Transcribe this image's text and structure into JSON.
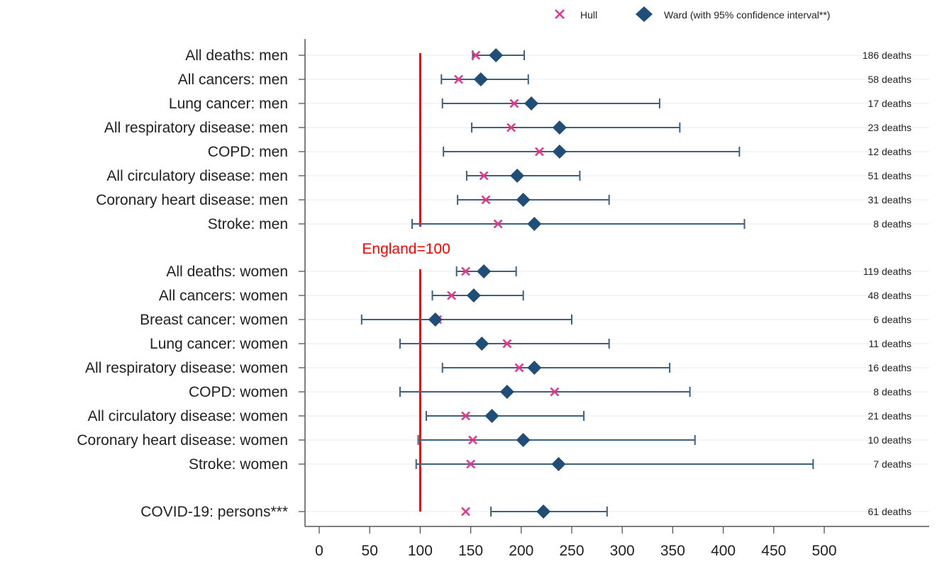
{
  "chart_data": {
    "type": "scatter",
    "orientation": "horizontal",
    "xlim": [
      0,
      500
    ],
    "xticks": [
      0,
      50,
      100,
      150,
      200,
      250,
      300,
      350,
      400,
      450,
      500
    ],
    "reference_line": {
      "value": 100,
      "label": "England=100",
      "color": "#ff0000"
    },
    "legend": {
      "position": "top-right",
      "hull_label": "Hull",
      "ward_label": "Ward (with 95% confidence interval**)"
    },
    "colors": {
      "hull": "#e8348f",
      "ward": "#1f4e79",
      "ci": "#3d5f80"
    },
    "rows": [
      {
        "label": "All deaths: men",
        "deaths": "186 deaths",
        "hull": 155,
        "ward": 175,
        "ci_low": 152,
        "ci_high": 203
      },
      {
        "label": "All cancers: men",
        "deaths": "58 deaths",
        "hull": 138,
        "ward": 160,
        "ci_low": 121,
        "ci_high": 207
      },
      {
        "label": "Lung cancer: men",
        "deaths": "17 deaths",
        "hull": 193,
        "ward": 210,
        "ci_low": 122,
        "ci_high": 337
      },
      {
        "label": "All respiratory disease: men",
        "deaths": "23 deaths",
        "hull": 190,
        "ward": 238,
        "ci_low": 151,
        "ci_high": 357
      },
      {
        "label": "COPD: men",
        "deaths": "12 deaths",
        "hull": 218,
        "ward": 238,
        "ci_low": 123,
        "ci_high": 416
      },
      {
        "label": "All circulatory disease: men",
        "deaths": "51 deaths",
        "hull": 163,
        "ward": 196,
        "ci_low": 146,
        "ci_high": 258
      },
      {
        "label": "Coronary heart disease: men",
        "deaths": "31 deaths",
        "hull": 165,
        "ward": 202,
        "ci_low": 137,
        "ci_high": 287
      },
      {
        "label": "Stroke: men",
        "deaths": "8 deaths",
        "hull": 177,
        "ward": 213,
        "ci_low": 92,
        "ci_high": 421
      },
      {
        "label": "All deaths: women",
        "deaths": "119 deaths",
        "hull": 145,
        "ward": 163,
        "ci_low": 136,
        "ci_high": 195
      },
      {
        "label": "All cancers: women",
        "deaths": "48 deaths",
        "hull": 131,
        "ward": 153,
        "ci_low": 112,
        "ci_high": 202
      },
      {
        "label": "Breast cancer: women",
        "deaths": "6 deaths",
        "hull": 117,
        "ward": 115,
        "ci_low": 42,
        "ci_high": 250
      },
      {
        "label": "Lung cancer: women",
        "deaths": "11 deaths",
        "hull": 186,
        "ward": 161,
        "ci_low": 80,
        "ci_high": 287
      },
      {
        "label": "All respiratory disease: women",
        "deaths": "16 deaths",
        "hull": 198,
        "ward": 213,
        "ci_low": 122,
        "ci_high": 347
      },
      {
        "label": "COPD: women",
        "deaths": "8 deaths",
        "hull": 233,
        "ward": 186,
        "ci_low": 80,
        "ci_high": 367
      },
      {
        "label": "All circulatory disease: women",
        "deaths": "21 deaths",
        "hull": 145,
        "ward": 171,
        "ci_low": 106,
        "ci_high": 262
      },
      {
        "label": "Coronary heart disease: women",
        "deaths": "10 deaths",
        "hull": 152,
        "ward": 202,
        "ci_low": 98,
        "ci_high": 372
      },
      {
        "label": "Stroke: women",
        "deaths": "7 deaths",
        "hull": 150,
        "ward": 237,
        "ci_low": 96,
        "ci_high": 489
      },
      {
        "label": "COVID-19: persons***",
        "deaths": "61 deaths",
        "hull": 145,
        "ward": 222,
        "ci_low": 170,
        "ci_high": 285
      }
    ]
  }
}
